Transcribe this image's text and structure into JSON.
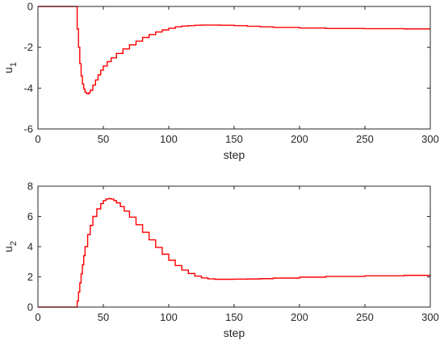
{
  "chart_data": [
    {
      "type": "line",
      "step": true,
      "xlabel": "step",
      "ylabel": "u",
      "ylabel_sub": "1",
      "xlim": [
        0,
        300
      ],
      "ylim": [
        -6,
        0
      ],
      "xticks": [
        0,
        50,
        100,
        150,
        200,
        250,
        300
      ],
      "yticks": [
        -6,
        -4,
        -2,
        0
      ],
      "grid": false,
      "series": [
        {
          "color": "#ff0000",
          "x": [
            0,
            29,
            30,
            31,
            32,
            33,
            34,
            35,
            36,
            37,
            38,
            39,
            40,
            42,
            44,
            46,
            48,
            50,
            53,
            56,
            60,
            65,
            70,
            75,
            80,
            85,
            90,
            95,
            100,
            105,
            110,
            115,
            120,
            125,
            130,
            140,
            150,
            160,
            170,
            180,
            200,
            220,
            250,
            280,
            300
          ],
          "y": [
            0,
            0,
            -1.1,
            -2.0,
            -2.8,
            -3.4,
            -3.8,
            -4.05,
            -4.2,
            -4.25,
            -4.28,
            -4.22,
            -4.1,
            -3.85,
            -3.6,
            -3.35,
            -3.12,
            -2.92,
            -2.7,
            -2.52,
            -2.3,
            -2.08,
            -1.88,
            -1.7,
            -1.52,
            -1.38,
            -1.25,
            -1.15,
            -1.07,
            -1.0,
            -0.96,
            -0.94,
            -0.92,
            -0.91,
            -0.91,
            -0.92,
            -0.94,
            -0.97,
            -1.0,
            -1.03,
            -1.06,
            -1.08,
            -1.09,
            -1.1,
            -1.1
          ]
        }
      ]
    },
    {
      "type": "line",
      "step": true,
      "xlabel": "step",
      "ylabel": "u",
      "ylabel_sub": "2",
      "xlim": [
        0,
        300
      ],
      "ylim": [
        0,
        8
      ],
      "xticks": [
        0,
        50,
        100,
        150,
        200,
        250,
        300
      ],
      "yticks": [
        0,
        2,
        4,
        6,
        8
      ],
      "grid": false,
      "series": [
        {
          "color": "#ff0000",
          "x": [
            0,
            29,
            30,
            31,
            32,
            33,
            34,
            35,
            36,
            38,
            40,
            42,
            45,
            48,
            50,
            52,
            54,
            56,
            58,
            60,
            63,
            66,
            70,
            75,
            80,
            85,
            90,
            95,
            100,
            105,
            110,
            115,
            120,
            125,
            130,
            135,
            140,
            150,
            160,
            170,
            180,
            200,
            220,
            250,
            280,
            300
          ],
          "y": [
            0,
            0,
            0.4,
            1.0,
            1.6,
            2.2,
            2.8,
            3.4,
            4.0,
            4.8,
            5.4,
            6.0,
            6.5,
            6.85,
            7.05,
            7.15,
            7.18,
            7.15,
            7.05,
            6.9,
            6.65,
            6.35,
            5.95,
            5.45,
            4.95,
            4.45,
            3.95,
            3.5,
            3.1,
            2.75,
            2.45,
            2.22,
            2.05,
            1.93,
            1.87,
            1.84,
            1.84,
            1.85,
            1.86,
            1.88,
            1.92,
            1.98,
            2.03,
            2.07,
            2.1,
            2.12
          ]
        }
      ]
    }
  ]
}
